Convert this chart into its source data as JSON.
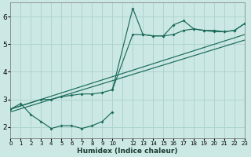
{
  "bg_color": "#cce8e4",
  "grid_color": "#aed4d0",
  "line_color": "#1a6b5a",
  "curve_low_x": [
    0,
    1,
    2,
    3,
    4,
    5,
    6,
    7,
    8,
    9,
    10
  ],
  "curve_low_y": [
    2.65,
    2.85,
    2.45,
    2.2,
    1.95,
    2.05,
    2.05,
    1.95,
    2.05,
    2.2,
    2.55
  ],
  "curve_spike_x": [
    0,
    3,
    4,
    5,
    6,
    7,
    8,
    9,
    10,
    12,
    13,
    14,
    15,
    16,
    17,
    18,
    19,
    20,
    21,
    22,
    23
  ],
  "curve_spike_y": [
    2.65,
    3.0,
    3.0,
    3.1,
    3.15,
    3.2,
    3.2,
    3.25,
    3.35,
    6.3,
    5.35,
    5.3,
    5.3,
    5.7,
    5.85,
    5.55,
    5.5,
    5.5,
    5.45,
    5.5,
    5.75
  ],
  "curve_upper_x": [
    10,
    12,
    13,
    14,
    15,
    16,
    17,
    18,
    19,
    20,
    21,
    22,
    23
  ],
  "curve_upper_y": [
    3.35,
    5.35,
    5.35,
    5.3,
    5.3,
    5.35,
    5.5,
    5.55,
    5.5,
    5.45,
    5.45,
    5.5,
    5.75
  ],
  "trend1_x": [
    0,
    23
  ],
  "trend1_y": [
    2.65,
    5.35
  ],
  "trend2_x": [
    0,
    23
  ],
  "trend2_y": [
    2.55,
    5.15
  ],
  "xlabel": "Humidex (Indice chaleur)",
  "xlim": [
    0,
    23
  ],
  "ylim": [
    1.6,
    6.5
  ],
  "yticks": [
    2,
    3,
    4,
    5,
    6
  ]
}
